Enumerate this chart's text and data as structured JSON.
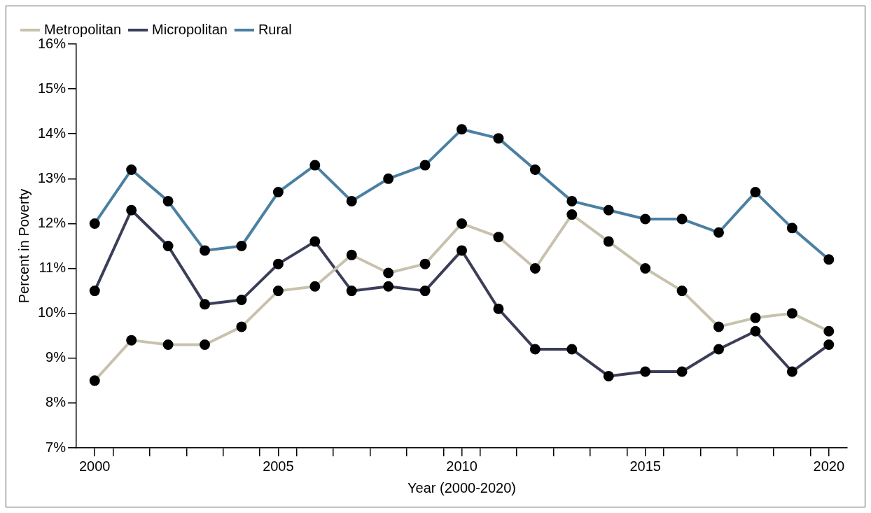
{
  "chart_data": {
    "type": "line",
    "xlabel": "Year (2000-2020)",
    "ylabel": "Percent in Poverty",
    "x": [
      2000,
      2001,
      2002,
      2003,
      2004,
      2005,
      2006,
      2007,
      2008,
      2009,
      2010,
      2011,
      2012,
      2013,
      2014,
      2015,
      2016,
      2017,
      2018,
      2019,
      2020
    ],
    "series": [
      {
        "name": "Metropolitan",
        "color": "#c8c2ad",
        "values": [
          8.5,
          9.4,
          9.3,
          9.3,
          9.7,
          10.5,
          10.6,
          11.3,
          10.9,
          11.1,
          12.0,
          11.7,
          11.0,
          12.2,
          11.6,
          11.0,
          10.5,
          9.7,
          9.9,
          10.0,
          9.6
        ]
      },
      {
        "name": "Micropolitan",
        "color": "#3b3e58",
        "values": [
          10.5,
          12.3,
          11.5,
          10.2,
          10.3,
          11.1,
          11.6,
          10.5,
          10.6,
          10.5,
          11.4,
          10.1,
          9.2,
          9.2,
          8.6,
          8.7,
          8.7,
          9.2,
          9.6,
          8.7,
          9.3
        ]
      },
      {
        "name": "Rural",
        "color": "#4a80a2",
        "values": [
          12.0,
          13.2,
          12.5,
          11.4,
          11.5,
          12.7,
          13.3,
          12.5,
          13.0,
          13.3,
          14.1,
          13.9,
          13.2,
          12.5,
          12.3,
          12.1,
          12.1,
          11.8,
          12.7,
          11.9,
          11.2
        ]
      }
    ],
    "xlim": [
      1999.5,
      2020.5
    ],
    "xticks": [
      2000,
      {
        "value": 2000.5,
        "label": null
      },
      {
        "value": 2001.5,
        "label": null
      },
      {
        "value": 2002.5,
        "label": null
      },
      {
        "value": 2003.5,
        "label": null
      },
      2005,
      {
        "value": 2004.5,
        "label": null
      },
      {
        "value": 2005.5,
        "label": null
      },
      {
        "value": 2006.5,
        "label": null
      },
      {
        "value": 2007.5,
        "label": null
      },
      {
        "value": 2008.5,
        "label": null
      },
      2010,
      {
        "value": 2009.5,
        "label": null
      },
      {
        "value": 2010.5,
        "label": null
      },
      {
        "value": 2011.5,
        "label": null
      },
      {
        "value": 2012.5,
        "label": null
      },
      {
        "value": 2013.5,
        "label": null
      },
      2015,
      {
        "value": 2014.5,
        "label": null
      },
      {
        "value": 2015.5,
        "label": null
      },
      {
        "value": 2016.5,
        "label": null
      },
      {
        "value": 2017.5,
        "label": null
      },
      {
        "value": 2018.5,
        "label": null
      },
      2020,
      {
        "value": 2019.5,
        "label": null
      }
    ],
    "ylim": [
      7,
      16
    ],
    "yticks": [
      {
        "value": 7,
        "label": "7%"
      },
      {
        "value": 8,
        "label": "8%"
      },
      {
        "value": 9,
        "label": "9%"
      },
      {
        "value": 10,
        "label": "10%"
      },
      {
        "value": 11,
        "label": "11%"
      },
      {
        "value": 12,
        "label": "12%"
      },
      {
        "value": 13,
        "label": "13%"
      },
      {
        "value": 14,
        "label": "14%"
      },
      {
        "value": 15,
        "label": "15%"
      },
      {
        "value": 16,
        "label": "16%"
      }
    ],
    "grid": false,
    "legend": "top left",
    "marker": "circle",
    "line_style": "solid"
  }
}
